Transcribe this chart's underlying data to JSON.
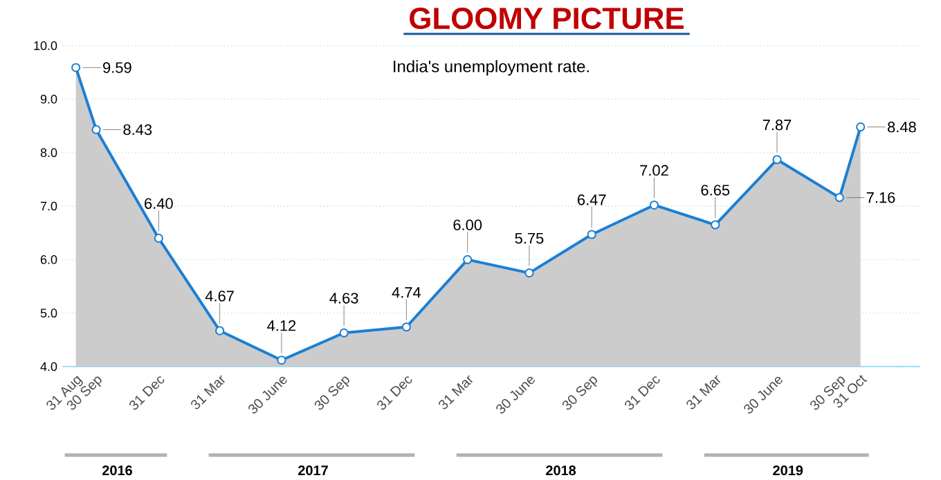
{
  "chart_data": {
    "type": "area",
    "title": "GLOOMY PICTURE",
    "subtitle": "India's unemployment rate.",
    "x": [
      "2016-08-31",
      "2016-09-30",
      "2016-12-31",
      "2017-03-31",
      "2017-06-30",
      "2017-09-30",
      "2017-12-31",
      "2018-03-31",
      "2018-06-30",
      "2018-09-30",
      "2018-12-31",
      "2019-03-31",
      "2019-06-30",
      "2019-09-30",
      "2019-10-31"
    ],
    "values": [
      9.59,
      8.43,
      6.4,
      4.67,
      4.12,
      4.63,
      4.74,
      6.0,
      5.75,
      6.47,
      7.02,
      6.65,
      7.87,
      7.16,
      8.48
    ],
    "value_labels": [
      "9.59",
      "8.43",
      "6.40",
      "4.67",
      "4.12",
      "4.63",
      "4.74",
      "6.00",
      "5.75",
      "6.47",
      "7.02",
      "6.65",
      "7.87",
      "7.16",
      "8.48"
    ],
    "color": "#1a7fd4",
    "xlim": [
      "2016-08-11",
      "2020-01-27"
    ],
    "xticks": [
      {
        "value": "2016-08-31",
        "label": "31 Aug"
      },
      {
        "value": "2016-09-30",
        "label": "30 Sep"
      },
      {
        "value": "2016-12-31",
        "label": "31 Dec"
      },
      {
        "value": "2017-03-31",
        "label": "31 Mar"
      },
      {
        "value": "2017-06-30",
        "label": "30 June"
      },
      {
        "value": "2017-09-30",
        "label": "30 Sep"
      },
      {
        "value": "2017-12-31",
        "label": "31 Dec"
      },
      {
        "value": "2018-03-31",
        "label": "31 Mar"
      },
      {
        "value": "2018-06-30",
        "label": "30 June"
      },
      {
        "value": "2018-09-30",
        "label": "30 Sep"
      },
      {
        "value": "2018-12-31",
        "label": "31 Dec"
      },
      {
        "value": "2019-03-31",
        "label": "31 Mar"
      },
      {
        "value": "2019-06-30",
        "label": "30 June"
      },
      {
        "value": "2019-09-30",
        "label": "30 Sep"
      },
      {
        "value": "2019-10-31",
        "label": "31 Oct"
      }
    ],
    "ylim": [
      4.0,
      10.0
    ],
    "yticks": [
      {
        "value": 4,
        "label": "4.0"
      },
      {
        "value": 5,
        "label": "5.0"
      },
      {
        "value": 6,
        "label": "6.0"
      },
      {
        "value": 7,
        "label": "7.0"
      },
      {
        "value": 8,
        "label": "8.0"
      },
      {
        "value": 9,
        "label": "9.0"
      },
      {
        "value": 10,
        "label": "10.0"
      }
    ],
    "annotations": [
      "2016",
      "2017",
      "2018",
      "2019"
    ],
    "grid": "y",
    "marker": "circle",
    "line_style": "solid"
  }
}
